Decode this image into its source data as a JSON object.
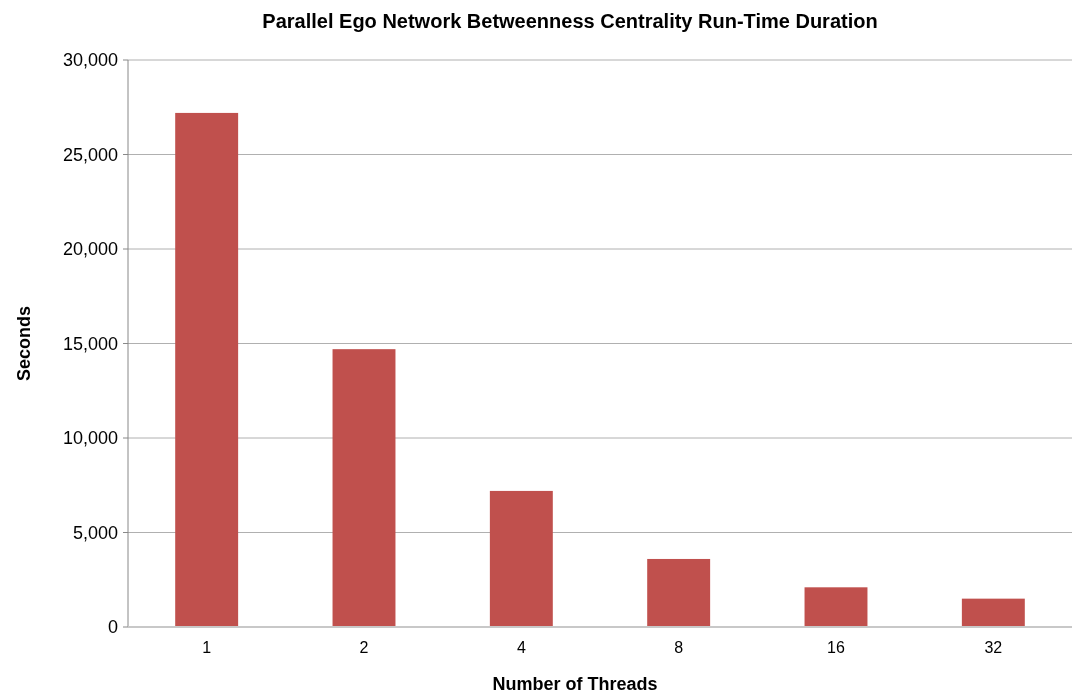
{
  "chart_data": {
    "type": "bar",
    "title": "Parallel Ego Network Betweenness Centrality Run-Time Duration",
    "xlabel": "Number of Threads",
    "ylabel": "Seconds",
    "categories": [
      "1",
      "2",
      "4",
      "8",
      "16",
      "32"
    ],
    "values": [
      27200,
      14700,
      7200,
      3600,
      2100,
      1500
    ],
    "color": "#c0504d",
    "ylim": [
      0,
      30000
    ],
    "yticks": [
      {
        "value": 0,
        "label": "0"
      },
      {
        "value": 5000,
        "label": "5,000"
      },
      {
        "value": 10000,
        "label": "10,000"
      },
      {
        "value": 15000,
        "label": "15,000"
      },
      {
        "value": 20000,
        "label": "20,000"
      },
      {
        "value": 25000,
        "label": "25,000"
      },
      {
        "value": 30000,
        "label": "30,000"
      }
    ],
    "grid": "y"
  }
}
